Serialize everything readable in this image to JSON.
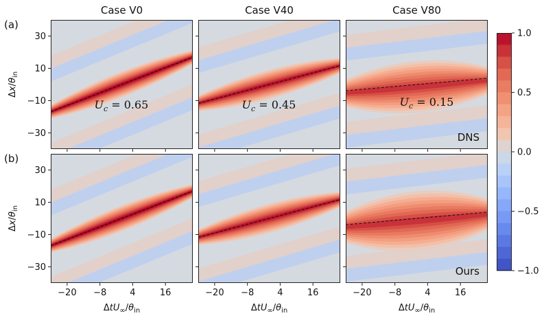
{
  "chart_data": {
    "type": "heatmap",
    "columns": [
      "Case V0",
      "Case V40",
      "Case V80"
    ],
    "rows": [
      {
        "panel_label": "(a)",
        "tag": "DNS"
      },
      {
        "panel_label": "(b)",
        "tag": "Ours"
      }
    ],
    "xlabel": "ΔtU∞/θin",
    "ylabel": "Δx/θin",
    "xlim": [
      -26,
      26
    ],
    "ylim": [
      -40,
      40
    ],
    "xticks": [
      "−20",
      "−8",
      "4",
      "16"
    ],
    "xtick_values": [
      -20,
      -8,
      4,
      16
    ],
    "yticks": [
      "30",
      "10",
      "−10",
      "−30"
    ],
    "ytick_values": [
      30,
      10,
      -10,
      -30
    ],
    "convection_velocity": [
      {
        "case": "Case V0",
        "label": "U_c = 0.65",
        "Uc": 0.65
      },
      {
        "case": "Case V40",
        "label": "U_c = 0.45",
        "Uc": 0.45
      },
      {
        "case": "Case V80",
        "label": "U_c = 0.15",
        "Uc": 0.15
      }
    ],
    "colorbar": {
      "min": -1.0,
      "max": 1.0,
      "ticks": [
        "1.0",
        "0.5",
        "0.0",
        "−0.5",
        "−1.0"
      ],
      "tick_values": [
        1.0,
        0.5,
        0.0,
        -0.5,
        -1.0
      ],
      "colormap": "coolwarm"
    }
  },
  "colors": {
    "background": "#d5dae0",
    "dashed_line": "#111111",
    "negative": "#3b4cc0",
    "positive": "#b40426"
  }
}
